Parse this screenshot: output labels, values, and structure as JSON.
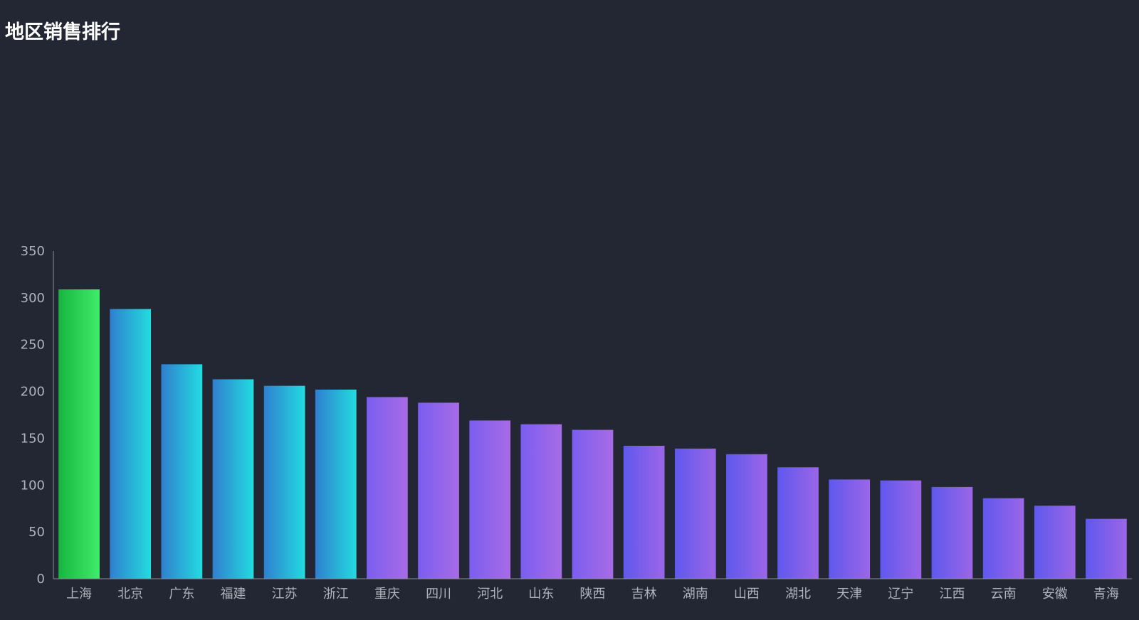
{
  "chart_data": {
    "type": "bar",
    "title": "地区销售排行",
    "xlabel": "",
    "ylabel": "",
    "ylim": [
      0,
      350
    ],
    "yticks": [
      0,
      50,
      100,
      150,
      200,
      250,
      300,
      350
    ],
    "grid": false,
    "categories": [
      "上海",
      "北京",
      "广东",
      "福建",
      "江苏",
      "浙江",
      "重庆",
      "四川",
      "河北",
      "山东",
      "陕西",
      "吉林",
      "湖南",
      "山西",
      "湖北",
      "天津",
      "辽宁",
      "江西",
      "云南",
      "安徽",
      "青海"
    ],
    "values": [
      309,
      288,
      229,
      213,
      206,
      202,
      194,
      188,
      169,
      165,
      159,
      142,
      139,
      133,
      119,
      106,
      105,
      98,
      86,
      78,
      64
    ],
    "bar_gradients": [
      [
        "#17b63f",
        "#40ec6a"
      ],
      [
        "#2f7fcf",
        "#22dce0"
      ],
      [
        "#2f7fcf",
        "#22dce0"
      ],
      [
        "#2f7fcf",
        "#22dce0"
      ],
      [
        "#2f7fcf",
        "#22dce0"
      ],
      [
        "#2f7fcf",
        "#22dce0"
      ],
      [
        "#7a5ef0",
        "#a86be6"
      ],
      [
        "#7a5ef0",
        "#a86be6"
      ],
      [
        "#7a5ef0",
        "#a86be6"
      ],
      [
        "#7a5ef0",
        "#a86be6"
      ],
      [
        "#7a5ef0",
        "#a86be6"
      ],
      [
        "#5f58ee",
        "#9c66e7"
      ],
      [
        "#5f58ee",
        "#9c66e7"
      ],
      [
        "#5f58ee",
        "#9c66e7"
      ],
      [
        "#5f58ee",
        "#9c66e7"
      ],
      [
        "#5f58ee",
        "#9c66e7"
      ],
      [
        "#5f58ee",
        "#9c66e7"
      ],
      [
        "#5f58ee",
        "#9c66e7"
      ],
      [
        "#5f58ee",
        "#9c66e7"
      ],
      [
        "#5f58ee",
        "#9c66e7"
      ],
      [
        "#5f58ee",
        "#9c66e7"
      ]
    ],
    "colors": {
      "background": "#222733",
      "axis": "#8a8f99",
      "tick_text": "#aeb3bd",
      "title": "#ffffff"
    }
  }
}
